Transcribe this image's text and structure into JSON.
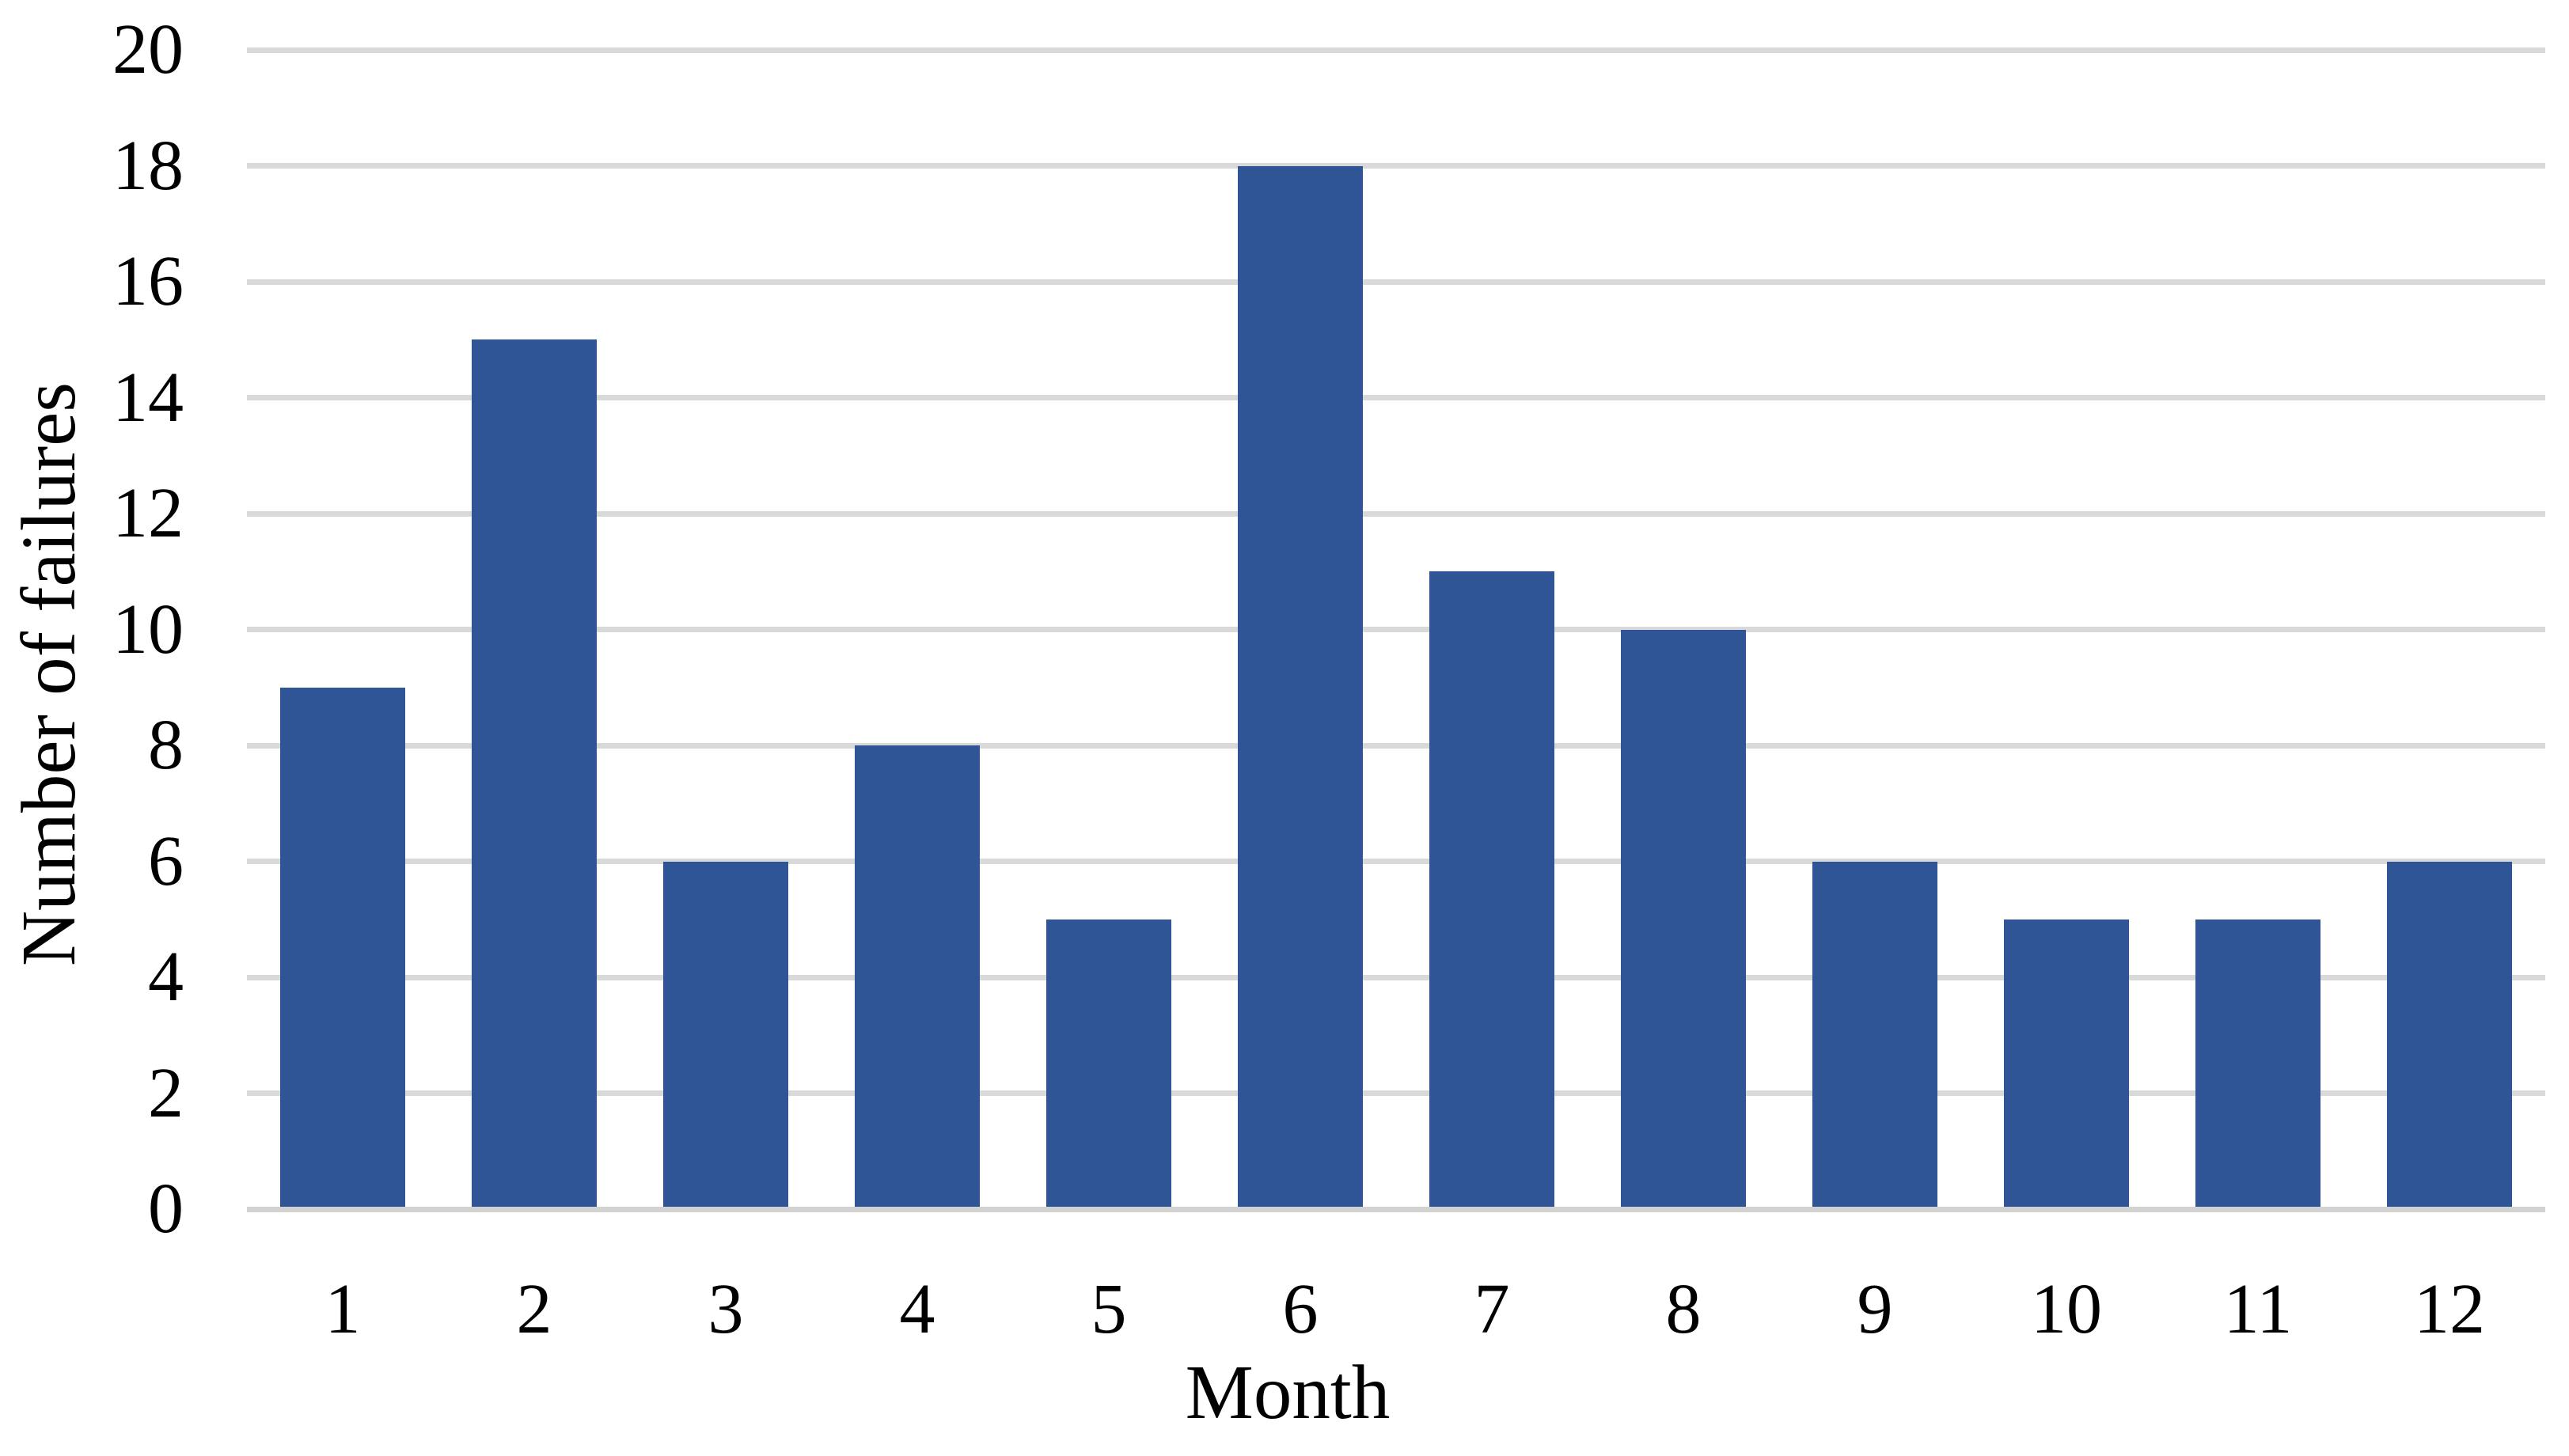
{
  "figure": {
    "background": "#ffffff",
    "text_color": "#000000"
  },
  "chart_data": {
    "type": "bar",
    "title": "",
    "xlabel": "Month",
    "ylabel": "Number of failures",
    "categories": [
      "1",
      "2",
      "3",
      "4",
      "5",
      "6",
      "7",
      "8",
      "9",
      "10",
      "11",
      "12"
    ],
    "values": [
      9,
      15,
      6,
      8,
      5,
      18,
      11,
      10,
      6,
      5,
      5,
      6
    ],
    "ylim": [
      0,
      20
    ],
    "ytick_step": 2,
    "yticks": [
      0,
      2,
      4,
      6,
      8,
      10,
      12,
      14,
      16,
      18,
      20
    ],
    "grid": "horizontal",
    "legend": "none",
    "bar_color": "#2f5596",
    "gridline_color": "#d9d9d9",
    "axisline_color": "#d2d2d2"
  }
}
